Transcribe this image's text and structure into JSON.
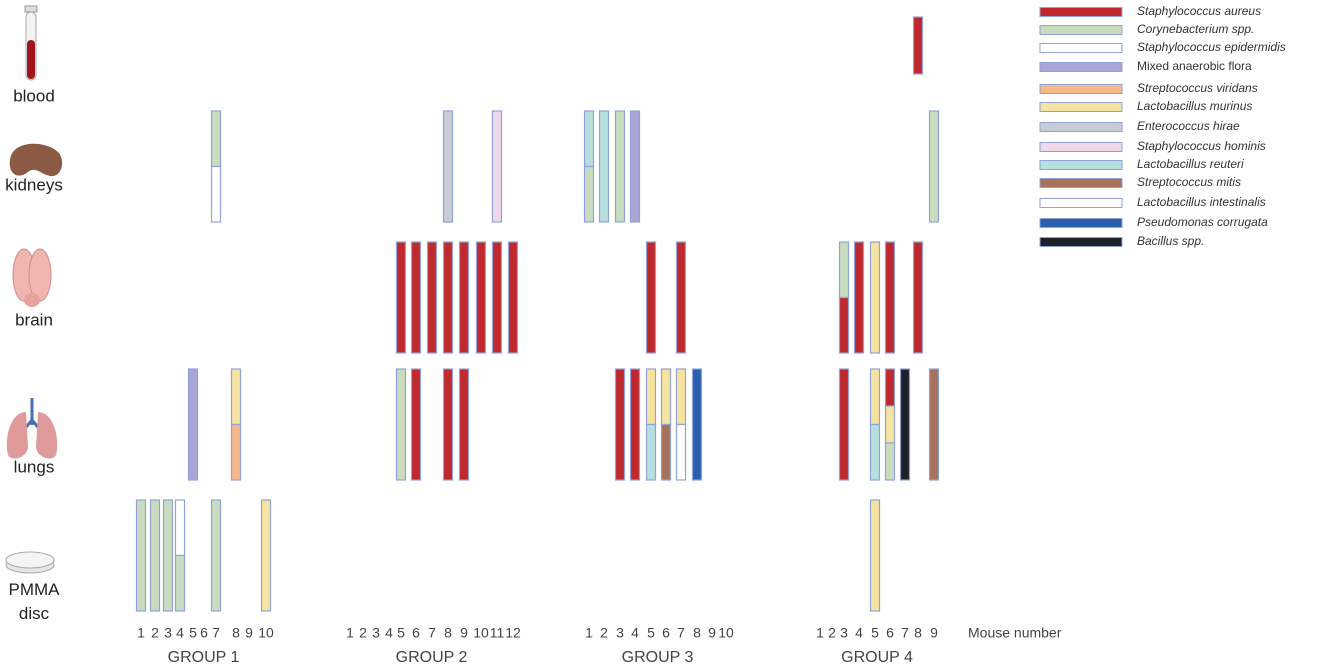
{
  "organs": [
    "blood",
    "kidneys",
    "brain",
    "lungs",
    "PMMA disc"
  ],
  "legend": [
    {
      "name": "Staphylococcus aureus",
      "color": "#c0282d",
      "italic": true
    },
    {
      "name": "Corynebacterium spp.",
      "color": "#c9dcc0",
      "italic": true
    },
    {
      "name": "Staphylococcus epidermidis",
      "color": "#ffffff",
      "italic": true
    },
    {
      "name": "Mixed anaerobic flora",
      "color": "#a9a6d6",
      "italic": false
    },
    {
      "name": "Streptococcus viridans",
      "color": "#f7b98a",
      "italic": true
    },
    {
      "name": "Lactobacillus murinus",
      "color": "#f7e3a0",
      "italic": true
    },
    {
      "name": "Enterococcus hirae",
      "color": "#c9ccd4",
      "italic": true
    },
    {
      "name": "Staphylococcus hominis",
      "color": "#efd8ea",
      "italic": true
    },
    {
      "name": "Lactobacillus reuteri",
      "color": "#b6e0dd",
      "italic": true
    },
    {
      "name": "Streptococcus mitis",
      "color": "#a8715a",
      "italic": true
    },
    {
      "name": "Lactobacillus intestinalis",
      "color": "#ffffff",
      "italic": true
    },
    {
      "name": "Pseudomonas corrugata",
      "color": "#2b5fae",
      "italic": true
    },
    {
      "name": "Bacillus spp.",
      "color": "#1e2228",
      "italic": true
    }
  ],
  "axis_label": "Mouse number",
  "groups": [
    {
      "label": "GROUP 1",
      "mice": [
        "1",
        "2",
        "3",
        "4",
        "5",
        "6",
        "7",
        "8",
        "9",
        "10"
      ],
      "cultures": [
        {
          "mouse": 6,
          "organ": 1,
          "species": [
            1,
            2
          ]
        },
        {
          "mouse": 4,
          "organ": 3,
          "species": [
            3
          ]
        },
        {
          "mouse": 7,
          "organ": 3,
          "species": [
            5,
            4
          ]
        },
        {
          "mouse": 0,
          "organ": 4,
          "species": [
            1
          ]
        },
        {
          "mouse": 1,
          "organ": 4,
          "species": [
            1
          ]
        },
        {
          "mouse": 2,
          "organ": 4,
          "species": [
            1
          ]
        },
        {
          "mouse": 3,
          "organ": 4,
          "species": [
            2,
            1
          ]
        },
        {
          "mouse": 6,
          "organ": 4,
          "species": [
            1
          ]
        },
        {
          "mouse": 9,
          "organ": 4,
          "species": [
            5
          ]
        }
      ]
    },
    {
      "label": "GROUP 2",
      "mice": [
        "1",
        "2",
        "3",
        "4",
        "5",
        "6",
        "7",
        "8",
        "9",
        "10",
        "11",
        "12"
      ],
      "cultures": [
        {
          "mouse": 7,
          "organ": 1,
          "species": [
            6
          ]
        },
        {
          "mouse": 10,
          "organ": 1,
          "species": [
            7
          ]
        },
        {
          "mouse": 4,
          "organ": 2,
          "species": [
            0
          ]
        },
        {
          "mouse": 5,
          "organ": 2,
          "species": [
            0
          ]
        },
        {
          "mouse": 6,
          "organ": 2,
          "species": [
            0
          ]
        },
        {
          "mouse": 7,
          "organ": 2,
          "species": [
            0
          ]
        },
        {
          "mouse": 8,
          "organ": 2,
          "species": [
            0
          ]
        },
        {
          "mouse": 9,
          "organ": 2,
          "species": [
            0
          ]
        },
        {
          "mouse": 10,
          "organ": 2,
          "species": [
            0
          ]
        },
        {
          "mouse": 11,
          "organ": 2,
          "species": [
            0
          ]
        },
        {
          "mouse": 4,
          "organ": 3,
          "species": [
            1
          ]
        },
        {
          "mouse": 5,
          "organ": 3,
          "species": [
            0
          ]
        },
        {
          "mouse": 7,
          "organ": 3,
          "species": [
            0
          ]
        },
        {
          "mouse": 8,
          "organ": 3,
          "species": [
            0
          ]
        }
      ]
    },
    {
      "label": "GROUP 3",
      "mice": [
        "1",
        "2",
        "3",
        "4",
        "5",
        "6",
        "7",
        "8",
        "9",
        "10"
      ],
      "cultures": [
        {
          "mouse": 0,
          "organ": 1,
          "species": [
            8,
            1
          ]
        },
        {
          "mouse": 1,
          "organ": 1,
          "species": [
            8
          ]
        },
        {
          "mouse": 2,
          "organ": 1,
          "species": [
            1
          ]
        },
        {
          "mouse": 3,
          "organ": 1,
          "species": [
            3
          ]
        },
        {
          "mouse": 4,
          "organ": 2,
          "species": [
            0
          ]
        },
        {
          "mouse": 6,
          "organ": 2,
          "species": [
            0
          ]
        },
        {
          "mouse": 2,
          "organ": 3,
          "species": [
            0
          ]
        },
        {
          "mouse": 3,
          "organ": 3,
          "species": [
            0
          ]
        },
        {
          "mouse": 4,
          "organ": 3,
          "species": [
            5,
            8
          ]
        },
        {
          "mouse": 5,
          "organ": 3,
          "species": [
            5,
            9
          ]
        },
        {
          "mouse": 6,
          "organ": 3,
          "species": [
            5,
            10
          ]
        },
        {
          "mouse": 7,
          "organ": 3,
          "species": [
            11
          ]
        }
      ]
    },
    {
      "label": "GROUP 4",
      "mice": [
        "1",
        "2",
        "3",
        "4",
        "5",
        "6",
        "7",
        "8",
        "9"
      ],
      "cultures": [
        {
          "mouse": 7,
          "organ": 0,
          "species": [
            0
          ]
        },
        {
          "mouse": 8,
          "organ": 1,
          "species": [
            1
          ]
        },
        {
          "mouse": 2,
          "organ": 2,
          "species": [
            1,
            0
          ]
        },
        {
          "mouse": 3,
          "organ": 2,
          "species": [
            0
          ]
        },
        {
          "mouse": 4,
          "organ": 2,
          "species": [
            5
          ]
        },
        {
          "mouse": 5,
          "organ": 2,
          "species": [
            0
          ]
        },
        {
          "mouse": 7,
          "organ": 2,
          "species": [
            0
          ]
        },
        {
          "mouse": 2,
          "organ": 3,
          "species": [
            0
          ]
        },
        {
          "mouse": 4,
          "organ": 3,
          "species": [
            5,
            8
          ]
        },
        {
          "mouse": 5,
          "organ": 3,
          "species": [
            0,
            5,
            1
          ]
        },
        {
          "mouse": 6,
          "organ": 3,
          "species": [
            12
          ]
        },
        {
          "mouse": 8,
          "organ": 3,
          "species": [
            9
          ]
        },
        {
          "mouse": 4,
          "organ": 4,
          "species": [
            5
          ]
        }
      ]
    }
  ]
}
